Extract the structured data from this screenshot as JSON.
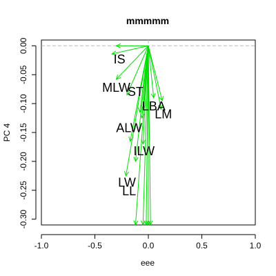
{
  "chart_data": {
    "type": "biplot-arrows",
    "title": "mmmmm",
    "xlabel": "eee",
    "ylabel": "PC 4",
    "xlim": [
      -1.0,
      1.0
    ],
    "ylim": [
      -0.31,
      0.01
    ],
    "x_ticks": [
      -1.0,
      -0.5,
      0.0,
      0.5,
      1.0
    ],
    "x_tick_labels": [
      "-1.0",
      "-0.5",
      "0.0",
      "0.5",
      "1.0"
    ],
    "y_ticks": [
      0.0,
      -0.05,
      -0.1,
      -0.15,
      -0.2,
      -0.25,
      -0.3
    ],
    "y_tick_labels": [
      "0.00",
      "-0.05",
      "-0.10",
      "-0.15",
      "-0.20",
      "-0.25",
      "-0.30"
    ],
    "arrow_color": "#00dd00",
    "reference_line_color": "#bbbbbb",
    "labels": [
      {
        "name": "IS",
        "x": -0.27,
        "y": -0.025
      },
      {
        "name": "MLW",
        "x": -0.3,
        "y": -0.074
      },
      {
        "name": "ST",
        "x": -0.12,
        "y": -0.081
      },
      {
        "name": "LBA",
        "x": 0.05,
        "y": -0.106
      },
      {
        "name": "LM",
        "x": 0.14,
        "y": -0.12
      },
      {
        "name": "ALW",
        "x": -0.18,
        "y": -0.144
      },
      {
        "name": "ILW",
        "x": -0.04,
        "y": -0.184
      },
      {
        "name": "LW",
        "x": -0.2,
        "y": -0.238
      },
      {
        "name": "LL",
        "x": -0.18,
        "y": -0.253
      }
    ],
    "arrows": [
      {
        "x": -0.3,
        "y": 0.0
      },
      {
        "x": -0.34,
        "y": -0.014
      },
      {
        "x": -0.3,
        "y": -0.058
      },
      {
        "x": -0.2,
        "y": -0.085
      },
      {
        "x": -0.08,
        "y": -0.115
      },
      {
        "x": -0.05,
        "y": -0.11
      },
      {
        "x": 0.05,
        "y": -0.09
      },
      {
        "x": 0.13,
        "y": -0.095
      },
      {
        "x": 0.12,
        "y": -0.11
      },
      {
        "x": -0.17,
        "y": -0.165
      },
      {
        "x": -0.06,
        "y": -0.125
      },
      {
        "x": -0.05,
        "y": -0.17
      },
      {
        "x": -0.21,
        "y": -0.225
      },
      {
        "x": -0.12,
        "y": -0.2
      },
      {
        "x": -0.12,
        "y": -0.31
      },
      {
        "x": -0.05,
        "y": -0.31
      },
      {
        "x": -0.02,
        "y": -0.31
      },
      {
        "x": 0.0,
        "y": -0.31
      },
      {
        "x": 0.02,
        "y": -0.31
      }
    ]
  }
}
